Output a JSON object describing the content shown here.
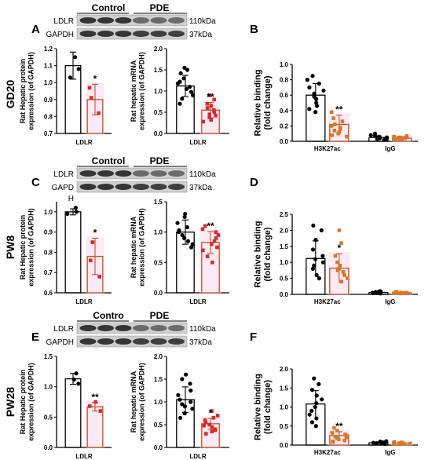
{
  "figure": {
    "rows": [
      {
        "row_label": "GD20",
        "blot": {
          "letter": "A",
          "group_labels": [
            "Control",
            "PDE"
          ],
          "band_labels": [
            "LDLR",
            "GAPDH"
          ],
          "size_labels": [
            "110kDa",
            "37kDa"
          ]
        },
        "protein_chart": {
          "type": "bar",
          "ylabel": "Rat Hepatic protein\nexpression (of GAPDH)",
          "xlabel": "LDLR",
          "ylim": [
            0.7,
            1.2
          ],
          "yticks": [
            "0.7",
            "0.8",
            "0.9",
            "1.0",
            "1.1",
            "1.2"
          ],
          "categories": [
            "Control",
            "PDE"
          ],
          "values": [
            1.1,
            0.9
          ],
          "errors": [
            0.08,
            0.09
          ],
          "points": [
            [
              1.15,
              1.08,
              1.03
            ],
            [
              0.97,
              0.91,
              0.82
            ]
          ],
          "significance": [
            "",
            "*"
          ],
          "colors": [
            "#000000",
            "#c8502a"
          ]
        },
        "mrna_chart": {
          "type": "bar",
          "ylabel": "Rat hepatic  mRNA\nexpression (of GAPDH)",
          "xlabel": "LDLR",
          "ylim": [
            0,
            2.0
          ],
          "yticks": [
            "0.0",
            "0.5",
            "1.0",
            "1.5",
            "2.0"
          ],
          "categories": [
            "Control",
            "PDE"
          ],
          "values": [
            1.12,
            0.55
          ],
          "errors": [
            0.25,
            0.18
          ],
          "points": [
            [
              1.55,
              1.5,
              1.42,
              1.3,
              1.22,
              1.18,
              1.1,
              1.05,
              0.98,
              0.9,
              0.82,
              0.7
            ],
            [
              0.9,
              0.8,
              0.7,
              0.65,
              0.6,
              0.55,
              0.5,
              0.45,
              0.42,
              0.38,
              0.32,
              0.28
            ]
          ],
          "significance": [
            "",
            "**"
          ],
          "colors": [
            "#000000",
            "#c8502a"
          ]
        },
        "chip": {
          "letter": "B",
          "type": "bar",
          "ylabel": "Relative binding\n(fold change)",
          "ylim": [
            0,
            1.0
          ],
          "yticks": [
            "0.0",
            "0.2",
            "0.4",
            "0.6",
            "0.8",
            "1.0"
          ],
          "group_labels": [
            "H3K27ac",
            "IgG"
          ],
          "values": [
            [
              0.6,
              0.22
            ],
            [
              0.05,
              0.04
            ]
          ],
          "errors": [
            [
              0.15,
              0.12
            ],
            [
              0.02,
              0.02
            ]
          ],
          "points": [
            [
              [
                0.85,
                0.8,
                0.75,
                0.7,
                0.66,
                0.62,
                0.58,
                0.55,
                0.5,
                0.46,
                0.42,
                0.38
              ],
              [
                0.38,
                0.3,
                0.26,
                0.22,
                0.2,
                0.18,
                0.16,
                0.14,
                0.12,
                0.1,
                0.08,
                0.06
              ]
            ],
            [
              [
                0.1,
                0.08,
                0.07,
                0.06,
                0.05,
                0.05,
                0.04,
                0.03,
                0.03,
                0.02
              ],
              [
                0.07,
                0.06,
                0.05,
                0.05,
                0.04,
                0.04,
                0.03,
                0.03,
                0.02,
                0.02
              ]
            ]
          ],
          "significance": [
            [
              "",
              "**"
            ],
            [
              "",
              ""
            ]
          ],
          "colors": [
            "#000000",
            "#c8502a"
          ]
        }
      },
      {
        "row_label": "PW8",
        "blot": {
          "letter": "C",
          "group_labels": [
            "Control",
            "PDE"
          ],
          "band_labels": [
            "LDLR",
            "GAPD\nH"
          ],
          "size_labels": [
            "110kDa",
            "37kDa"
          ]
        },
        "protein_chart": {
          "type": "bar",
          "ylabel": "Rat Hepatic protein\nexpression (of GAPDH)",
          "xlabel": "LDLR",
          "ylim": [
            0.6,
            1.05
          ],
          "yticks": [
            "0.6",
            "0.7",
            "0.8",
            "0.9",
            "1.0"
          ],
          "categories": [
            "Control",
            "PDE"
          ],
          "values": [
            1.0,
            0.78
          ],
          "errors": [
            0.015,
            0.09
          ],
          "points": [
            [
              1.02,
              1.0,
              0.99
            ],
            [
              0.85,
              0.76,
              0.68
            ]
          ],
          "significance": [
            "",
            "*"
          ],
          "colors": [
            "#000000",
            "#c8502a"
          ]
        },
        "mrna_chart": {
          "type": "bar",
          "ylabel": "Rat hepatic  mRNA\nexpression (of GAPDH)",
          "xlabel": "LDLR",
          "ylim": [
            0,
            1.5
          ],
          "yticks": [
            "0.0",
            "0.5",
            "1.0",
            "1.5"
          ],
          "categories": [
            "Control",
            "PDE"
          ],
          "values": [
            1.0,
            0.83
          ],
          "errors": [
            0.2,
            0.18
          ],
          "points": [
            [
              1.3,
              1.25,
              1.15,
              1.08,
              1.03,
              1.0,
              0.95,
              0.9,
              0.85,
              0.8,
              0.75
            ],
            [
              1.1,
              1.05,
              1.0,
              0.95,
              0.9,
              0.85,
              0.8,
              0.75,
              0.7,
              0.6,
              0.5
            ]
          ],
          "significance": [
            "",
            "**"
          ],
          "colors": [
            "#000000",
            "#c8502a"
          ]
        },
        "chip": {
          "letter": "D",
          "type": "bar",
          "ylabel": "Relative binding\n(fold change)",
          "ylim": [
            0,
            2.5
          ],
          "yticks": [
            "0.0",
            "0.5",
            "1.0",
            "1.5",
            "2.0",
            "2.5"
          ],
          "group_labels": [
            "H3K27ac",
            "IgG"
          ],
          "values": [
            [
              1.12,
              0.82
            ],
            [
              0.06,
              0.05
            ]
          ],
          "errors": [
            [
              0.55,
              0.45
            ],
            [
              0.02,
              0.02
            ]
          ],
          "points": [
            [
              [
                2.15,
                2.0,
                1.7,
                1.4,
                1.2,
                1.1,
                1.0,
                0.9,
                0.8,
                0.6,
                0.5
              ],
              [
                2.0,
                1.6,
                1.2,
                1.0,
                0.9,
                0.8,
                0.75,
                0.7,
                0.6,
                0.5,
                0.4
              ]
            ],
            [
              [
                0.1,
                0.09,
                0.08,
                0.07,
                0.06,
                0.05,
                0.05,
                0.04,
                0.03
              ],
              [
                0.08,
                0.07,
                0.06,
                0.05,
                0.05,
                0.04,
                0.04,
                0.03,
                0.03
              ]
            ]
          ],
          "significance": [
            [
              "",
              "*"
            ],
            [
              "",
              ""
            ]
          ],
          "colors": [
            "#000000",
            "#c8502a"
          ]
        }
      },
      {
        "row_label": "PW28",
        "blot": {
          "letter": "E",
          "group_labels": [
            "Contro",
            "PDE"
          ],
          "band_labels": [
            "LDLR",
            "GAPDH"
          ],
          "size_labels": [
            "110kDa",
            "37kDa"
          ]
        },
        "protein_chart": {
          "type": "bar",
          "ylabel": "Rat Hepatic protein\nexpression (of GAPDH)",
          "xlabel": "LDLR",
          "ylim": [
            0,
            1.5
          ],
          "yticks": [
            "0.0",
            "0.5",
            "1.0",
            "1.5"
          ],
          "categories": [
            "Control",
            "PDE"
          ],
          "values": [
            1.13,
            0.67
          ],
          "errors": [
            0.09,
            0.07
          ],
          "points": [
            [
              1.22,
              1.12,
              1.05
            ],
            [
              0.75,
              0.68,
              0.6
            ]
          ],
          "significance": [
            "",
            "**"
          ],
          "colors": [
            "#000000",
            "#c8502a"
          ]
        },
        "mrna_chart": {
          "type": "bar",
          "ylabel": "Rat hepatic  mRNA\nexpression (of GAPDH)",
          "xlabel": "LDLR",
          "ylim": [
            0,
            2.0
          ],
          "yticks": [
            "0.0",
            "0.5",
            "1.0",
            "1.5",
            "2.0"
          ],
          "categories": [
            "Control",
            "PDE"
          ],
          "values": [
            1.05,
            0.52
          ],
          "errors": [
            0.28,
            0.12
          ],
          "points": [
            [
              1.6,
              1.5,
              1.4,
              1.25,
              1.15,
              1.05,
              1.0,
              0.95,
              0.9,
              0.85,
              0.75,
              0.65
            ],
            [
              0.8,
              0.7,
              0.65,
              0.6,
              0.55,
              0.5,
              0.48,
              0.45,
              0.4,
              0.38,
              0.35,
              0.3
            ]
          ],
          "significance": [
            "",
            "*"
          ],
          "colors": [
            "#000000",
            "#c8502a"
          ]
        },
        "chip": {
          "letter": "F",
          "type": "bar",
          "ylabel": "Relative binding\n(fold change)",
          "ylim": [
            0,
            2.0
          ],
          "yticks": [
            "0.0",
            "0.5",
            "1.0",
            "1.5",
            "2.0"
          ],
          "group_labels": [
            "H3K27ac",
            "IgG"
          ],
          "values": [
            [
              1.08,
              0.25
            ],
            [
              0.06,
              0.05
            ]
          ],
          "errors": [
            [
              0.35,
              0.1
            ],
            [
              0.02,
              0.02
            ]
          ],
          "points": [
            [
              [
                1.75,
                1.6,
                1.45,
                1.3,
                1.2,
                1.1,
                1.0,
                0.9,
                0.8,
                0.7,
                0.6,
                0.5
              ],
              [
                0.45,
                0.38,
                0.32,
                0.28,
                0.25,
                0.22,
                0.2,
                0.18,
                0.15,
                0.12,
                0.1,
                0.08
              ]
            ],
            [
              [
                0.1,
                0.09,
                0.08,
                0.07,
                0.06,
                0.05,
                0.05,
                0.04,
                0.03
              ],
              [
                0.08,
                0.07,
                0.06,
                0.05,
                0.05,
                0.04,
                0.04,
                0.03,
                0.03
              ]
            ]
          ],
          "significance": [
            [
              "",
              "**"
            ],
            [
              "",
              ""
            ]
          ],
          "colors": [
            "#000000",
            "#c8502a"
          ]
        }
      }
    ]
  }
}
